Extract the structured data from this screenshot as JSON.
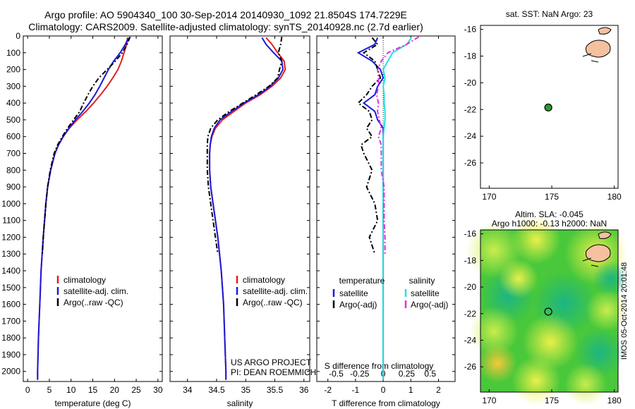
{
  "header": {
    "line1": "Argo profile: AO 5904340_100 30-Sep-2014 20140930_1092 21.8504S 174.7229E",
    "line2": "Climatology: CARS2009. Satellite-adjusted climatology: synTS_20140928.nc (2.7d earlier)"
  },
  "depth_ticks": [
    "0",
    "100",
    "200",
    "300",
    "400",
    "500",
    "600",
    "700",
    "800",
    "900",
    "1000",
    "1100",
    "1200",
    "1300",
    "1400",
    "1500",
    "1600",
    "1700",
    "1800",
    "1900",
    "2000"
  ],
  "colors": {
    "climatology": "#e02020",
    "satellite": "#1a1adc",
    "argo": "#000000",
    "sat_cyan": "#20e0e0",
    "argo_magenta": "#e030e0"
  },
  "chart_data": [
    {
      "type": "line",
      "name": "temperature",
      "xlabel": "temperature (deg C)",
      "ylabel": "",
      "xlim": [
        -1,
        31
      ],
      "ylim": [
        2060,
        0
      ],
      "xticks": [
        "0",
        "5",
        "10",
        "15",
        "20",
        "25",
        "30"
      ],
      "legend": [
        "climatology",
        "satellite-adj. clim.",
        "Argo(..raw -QC)"
      ],
      "legend_position": "lower-right",
      "series": [
        {
          "key": "clim",
          "depth": [
            10,
            50,
            100,
            150,
            200,
            250,
            300,
            350,
            400,
            450,
            500,
            550,
            600,
            650,
            700,
            800,
            900,
            1000,
            1200,
            1400,
            1600,
            1800,
            2000,
            2050
          ],
          "values": [
            23.0,
            22.8,
            22.2,
            21.6,
            20.8,
            19.6,
            18.3,
            16.8,
            15.2,
            13.4,
            11.4,
            9.6,
            8.2,
            7.1,
            6.3,
            5.3,
            4.6,
            4.2,
            3.6,
            3.1,
            2.8,
            2.5,
            2.3,
            2.3
          ]
        },
        {
          "key": "sat",
          "depth": [
            10,
            50,
            100,
            150,
            200,
            250,
            300,
            350,
            400,
            450,
            500,
            550,
            600,
            650,
            700,
            800,
            900,
            1000,
            1200,
            1400,
            1600,
            1800,
            2000,
            2050
          ],
          "values": [
            23.2,
            22.5,
            21.3,
            19.8,
            18.6,
            17.6,
            16.6,
            15.5,
            14.2,
            12.7,
            11.0,
            9.5,
            8.2,
            7.1,
            6.3,
            5.3,
            4.6,
            4.2,
            3.6,
            3.1,
            2.8,
            2.5,
            2.3,
            2.3
          ]
        },
        {
          "key": "argo",
          "depth": [
            5,
            50,
            100,
            150,
            200,
            250,
            300,
            350,
            400,
            450,
            500,
            550,
            600,
            650,
            700,
            800,
            900,
            1000,
            1100,
            1200,
            1300
          ],
          "values": [
            23.6,
            22.9,
            21.8,
            20.2,
            18.3,
            16.4,
            15.0,
            13.9,
            12.9,
            12.0,
            10.6,
            9.2,
            8.0,
            6.9,
            6.1,
            5.2,
            4.6,
            4.2,
            3.9,
            3.6,
            3.4
          ]
        }
      ]
    },
    {
      "type": "line",
      "name": "salinity",
      "xlabel": "salinity",
      "ylabel": "",
      "xlim": [
        33.7,
        36.1
      ],
      "ylim": [
        2060,
        0
      ],
      "xticks": [
        "34",
        "34.5",
        "35",
        "35.5",
        "36"
      ],
      "legend": [
        "climatology",
        "satellite-adj. clim.",
        "Argo(..raw -QC)"
      ],
      "legend_position": "lower-right",
      "annotation": [
        "US ARGO PROJECT",
        "PI: DEAN ROEMMICH"
      ],
      "series": [
        {
          "key": "clim",
          "depth": [
            10,
            50,
            100,
            150,
            200,
            250,
            300,
            350,
            400,
            450,
            500,
            550,
            600,
            650,
            700,
            800,
            900,
            1000,
            1200,
            1400,
            1600,
            1800,
            2000,
            2050
          ],
          "values": [
            35.35,
            35.45,
            35.55,
            35.66,
            35.68,
            35.6,
            35.45,
            35.25,
            35.0,
            34.8,
            34.6,
            34.48,
            34.42,
            34.39,
            34.38,
            34.38,
            34.4,
            34.44,
            34.52,
            34.58,
            34.62,
            34.64,
            34.66,
            34.66
          ]
        },
        {
          "key": "sat",
          "depth": [
            10,
            50,
            100,
            150,
            200,
            250,
            300,
            350,
            400,
            450,
            500,
            550,
            600,
            650,
            700,
            800,
            900,
            1000,
            1200,
            1400,
            1600,
            1800,
            2000,
            2050
          ],
          "values": [
            35.28,
            35.35,
            35.48,
            35.62,
            35.64,
            35.56,
            35.42,
            35.22,
            34.97,
            34.76,
            34.56,
            34.46,
            34.41,
            34.39,
            34.38,
            34.38,
            34.4,
            34.44,
            34.52,
            34.58,
            34.62,
            34.64,
            34.66,
            34.66
          ]
        },
        {
          "key": "argo",
          "depth": [
            5,
            50,
            100,
            150,
            200,
            250,
            300,
            350,
            400,
            450,
            500,
            550,
            600,
            650,
            700,
            800,
            900,
            1000,
            1100,
            1200,
            1300
          ],
          "values": [
            35.62,
            35.6,
            35.56,
            35.62,
            35.58,
            35.55,
            35.4,
            35.18,
            34.95,
            34.72,
            34.52,
            34.4,
            34.35,
            34.34,
            34.34,
            34.34,
            34.36,
            34.4,
            34.44,
            34.48,
            34.52
          ]
        }
      ]
    },
    {
      "type": "line",
      "name": "differences",
      "xlabel": "T difference from climatology",
      "xlabel_top": "S difference from climatology",
      "xlim": [
        -2.4,
        2.6
      ],
      "ylim": [
        2060,
        0
      ],
      "xticks": [
        "-2",
        "-1",
        "0",
        "1",
        "2"
      ],
      "xticks_top": [
        "-0.5",
        "-0.25",
        "0",
        "0.25",
        "0.5"
      ],
      "legend_left_title": "temperature",
      "legend_right_title": "salinity",
      "legend_left": [
        "satellite",
        "Argo(-adj)"
      ],
      "legend_right": [
        "satellite",
        "Argo(-adj)"
      ],
      "legend_position": "lower",
      "series": [
        {
          "key": "t_sat",
          "depth": [
            10,
            50,
            100,
            150,
            200,
            250,
            300,
            350,
            400,
            450,
            500,
            550,
            600,
            700,
            800,
            900,
            1000,
            1200,
            1400,
            1600,
            1800,
            2000,
            2050
          ],
          "values": [
            -0.2,
            -0.3,
            -0.9,
            -0.4,
            -0.1,
            0.0,
            -0.2,
            -0.3,
            -0.7,
            -0.3,
            -0.2,
            0.0,
            0.0,
            0.0,
            0.0,
            0.0,
            0.0,
            0.0,
            0.0,
            0.0,
            0.0,
            0.0,
            0.0
          ]
        },
        {
          "key": "t_argo",
          "depth": [
            10,
            50,
            100,
            150,
            200,
            250,
            300,
            350,
            400,
            450,
            500,
            550,
            600,
            650,
            700,
            800,
            900,
            1000,
            1100,
            1200,
            1300
          ],
          "values": [
            -0.4,
            -0.2,
            -0.7,
            -0.3,
            -0.2,
            -0.1,
            -0.4,
            -0.6,
            -0.9,
            -0.5,
            -0.4,
            -0.6,
            -0.4,
            -0.8,
            -0.7,
            -0.4,
            -0.6,
            -0.3,
            -0.2,
            -0.5,
            -0.3
          ]
        },
        {
          "key": "s_sat",
          "depth": [
            10,
            50,
            100,
            150,
            200,
            250,
            300,
            350,
            400,
            450,
            500,
            550,
            600,
            700,
            800,
            900,
            1000,
            1200,
            1400,
            1600,
            1800,
            2000,
            2050
          ],
          "values": [
            0.3,
            0.25,
            0.1,
            0.05,
            0.0,
            0.02,
            0.0,
            0.01,
            0.01,
            0.02,
            0.02,
            0.01,
            0.0,
            0.0,
            0.0,
            0.0,
            0.0,
            0.0,
            0.0,
            0.0,
            0.0,
            0.0,
            0.0
          ]
        },
        {
          "key": "s_argo",
          "depth": [
            5,
            50,
            100,
            150,
            200,
            250,
            300,
            350,
            400,
            450,
            500,
            550,
            600,
            650,
            700,
            800,
            900,
            1000,
            1100,
            1200,
            1300
          ],
          "values": [
            0.38,
            0.25,
            0.05,
            -0.02,
            -0.06,
            -0.05,
            -0.05,
            -0.07,
            -0.05,
            -0.06,
            -0.04,
            -0.02,
            -0.05,
            -0.02,
            -0.02,
            -0.02,
            0.01,
            0.01,
            0.01,
            0.02,
            0.02
          ]
        }
      ]
    },
    {
      "type": "scatter",
      "name": "sst-map",
      "title": "sat. SST: NaN Argo: 23",
      "xlim": [
        169.3,
        180.3
      ],
      "ylim": [
        -27.9,
        -15.7
      ],
      "xticks": [
        "170",
        "175",
        "180"
      ],
      "yticks": [
        "-16",
        "-18",
        "-20",
        "-22",
        "-24",
        "-26"
      ],
      "point": {
        "lon": 174.7229,
        "lat": -21.8504
      }
    },
    {
      "type": "heatmap",
      "name": "sla-map",
      "title": [
        "Altim. SLA: -0.045",
        "Argo h1000: -0.13 h2000: NaN"
      ],
      "xlim": [
        169.3,
        180.3
      ],
      "ylim": [
        -27.9,
        -15.7
      ],
      "xticks": [
        "170",
        "175",
        "180"
      ],
      "yticks": [
        "-16",
        "-18",
        "-20",
        "-22",
        "-24",
        "-26"
      ],
      "point": {
        "lon": 174.7229,
        "lat": -21.8504
      },
      "side_label": "IMOS 05-Oct-2014 20:01:48"
    }
  ]
}
